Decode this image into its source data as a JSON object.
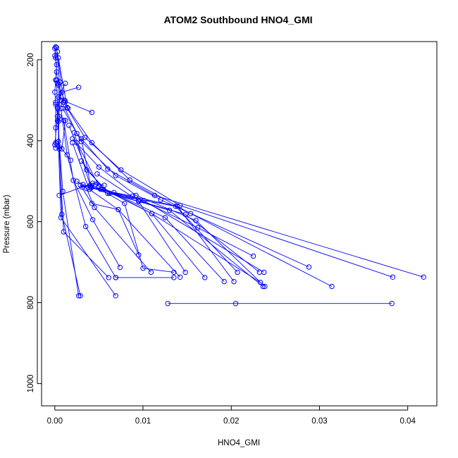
{
  "chart_data": {
    "type": "line",
    "title": "ATOM2 Southbound HNO4_GMI",
    "xlabel": "HNO4_GMI",
    "ylabel": "Pressure (mbar)",
    "xlim": [
      -0.0015,
      0.0433
    ],
    "ylim": [
      1055,
      155
    ],
    "y_reversed": true,
    "x_ticks": [
      0.0,
      0.01,
      0.02,
      0.03,
      0.04
    ],
    "x_tick_labels": [
      "0.00",
      "0.01",
      "0.02",
      "0.03",
      "0.04"
    ],
    "y_ticks": [
      200,
      400,
      600,
      800,
      1000
    ],
    "y_tick_labels": [
      "200",
      "400",
      "600",
      "800",
      "1000"
    ],
    "grid": false,
    "series_color": "#0000ff",
    "marker": "open-circle",
    "profiles": [
      [
        [
          0.0382,
          802
        ],
        [
          0.0205,
          802
        ],
        [
          0.0128,
          802
        ]
      ],
      [
        [
          0.0418,
          737
        ],
        [
          0.0113,
          535
        ],
        [
          0.006,
          470
        ],
        [
          0.0025,
          382
        ],
        [
          0.0007,
          300
        ],
        [
          0.0002,
          170
        ]
      ],
      [
        [
          0.0383,
          737
        ],
        [
          0.0142,
          560
        ],
        [
          0.0075,
          472
        ],
        [
          0.0034,
          392
        ],
        [
          0.001,
          305
        ],
        [
          0.0003,
          180
        ]
      ],
      [
        [
          0.0314,
          760
        ],
        [
          0.0154,
          580
        ],
        [
          0.0085,
          497
        ],
        [
          0.0042,
          405
        ],
        [
          0.0014,
          318
        ],
        [
          0.0004,
          195
        ]
      ],
      [
        [
          0.0288,
          712
        ],
        [
          0.012,
          546
        ],
        [
          0.0069,
          486
        ],
        [
          0.003,
          402
        ],
        [
          0.0009,
          320
        ]
      ],
      [
        [
          0.0238,
          760
        ],
        [
          0.016,
          597
        ],
        [
          0.0092,
          535
        ],
        [
          0.005,
          465
        ],
        [
          0.002,
          395
        ]
      ],
      [
        [
          0.0236,
          760
        ],
        [
          0.013,
          572
        ],
        [
          0.0062,
          530
        ],
        [
          0.0036,
          472
        ],
        [
          0.0016,
          362
        ]
      ],
      [
        [
          0.0233,
          750
        ],
        [
          0.011,
          580
        ],
        [
          0.0055,
          520
        ],
        [
          0.003,
          450
        ]
      ],
      [
        [
          0.0232,
          725
        ],
        [
          0.0148,
          582
        ],
        [
          0.0095,
          548
        ],
        [
          0.0048,
          482
        ]
      ],
      [
        [
          0.0237,
          725
        ],
        [
          0.0101,
          548
        ],
        [
          0.0041,
          514
        ],
        [
          0.003,
          395
        ]
      ],
      [
        [
          0.0225,
          685
        ],
        [
          0.0162,
          615
        ],
        [
          0.0088,
          537
        ],
        [
          0.0038,
          515
        ]
      ],
      [
        [
          0.0207,
          725
        ],
        [
          0.0137,
          562
        ],
        [
          0.006,
          530
        ],
        [
          0.0032,
          508
        ]
      ],
      [
        [
          0.0203,
          748
        ],
        [
          0.0139,
          562
        ],
        [
          0.0067,
          528
        ],
        [
          0.0041,
          517
        ]
      ],
      [
        [
          0.0192,
          748
        ],
        [
          0.0125,
          590
        ],
        [
          0.0046,
          508
        ],
        [
          0.0031,
          515
        ]
      ],
      [
        [
          0.017,
          738
        ],
        [
          0.011,
          580
        ],
        [
          0.005,
          512
        ],
        [
          0.0025,
          405
        ]
      ],
      [
        [
          0.0148,
          725
        ],
        [
          0.0095,
          550
        ],
        [
          0.004,
          510
        ],
        [
          0.0022,
          380
        ]
      ],
      [
        [
          0.0142,
          737
        ],
        [
          0.0072,
          570
        ],
        [
          0.0042,
          555
        ],
        [
          0.0029,
          510
        ]
      ],
      [
        [
          0.0135,
          725
        ],
        [
          0.01,
          715
        ],
        [
          0.0079,
          555
        ],
        [
          0.0052,
          520
        ]
      ],
      [
        [
          0.0109,
          725
        ],
        [
          0.0045,
          565
        ],
        [
          0.0036,
          518
        ],
        [
          0.0025,
          500
        ]
      ],
      [
        [
          0.0095,
          682
        ],
        [
          0.0072,
          570
        ],
        [
          0.0039,
          520
        ],
        [
          0.002,
          405
        ]
      ],
      [
        [
          0.0074,
          713
        ],
        [
          0.0043,
          595
        ],
        [
          0.0021,
          498
        ],
        [
          0.001,
          350
        ]
      ],
      [
        [
          0.0069,
          738
        ],
        [
          0.0035,
          612
        ],
        [
          0.0014,
          435
        ],
        [
          0.0007,
          320
        ]
      ],
      [
        [
          0.0069,
          783
        ],
        [
          0.0007,
          590
        ],
        [
          0.0004,
          402
        ],
        [
          0.0006,
          255
        ]
      ],
      [
        [
          0.0061,
          738
        ],
        [
          0.001,
          625
        ],
        [
          0.0005,
          420
        ],
        [
          0.0002,
          250
        ]
      ],
      [
        [
          0.0029,
          783
        ],
        [
          0.0008,
          582
        ],
        [
          0.0004,
          352
        ],
        [
          0.0001,
          305
        ]
      ],
      [
        [
          0.0027,
          783
        ],
        [
          0.0009,
          525
        ],
        [
          0.0003,
          340
        ],
        [
          0.0,
          410
        ]
      ],
      [
        [
          0.0069,
          738
        ],
        [
          0.0135,
          738
        ]
      ],
      [
        [
          0.0056,
          510
        ],
        [
          0.0043,
          505
        ],
        [
          0.0005,
          535
        ]
      ],
      [
        [
          0.0042,
          330
        ],
        [
          0.0012,
          303
        ],
        [
          0.0004,
          292
        ],
        [
          0.0012,
          258
        ]
      ],
      [
        [
          0.0027,
          268
        ],
        [
          0.0008,
          280
        ],
        [
          0.0003,
          320
        ],
        [
          0.0005,
          415
        ]
      ],
      [
        [
          0.0001,
          418
        ],
        [
          0.0001,
          405
        ],
        [
          0.0001,
          368
        ],
        [
          0.0001,
          310
        ],
        [
          0.0,
          280
        ],
        [
          0.0001,
          250
        ],
        [
          0.0002,
          212
        ],
        [
          0.0,
          190
        ],
        [
          0.0001,
          168
        ]
      ],
      [
        [
          0.0003,
          350
        ],
        [
          0.0005,
          310
        ],
        [
          0.0004,
          262
        ],
        [
          0.0002,
          230
        ],
        [
          0.0001,
          195
        ],
        [
          0.0,
          172
        ]
      ],
      [
        [
          0.0018,
          448
        ],
        [
          0.0008,
          420
        ],
        [
          0.0012,
          350
        ],
        [
          0.0005,
          340
        ]
      ],
      [
        [
          0.0015,
          320
        ],
        [
          0.0011,
          300
        ],
        [
          0.0003,
          258
        ]
      ]
    ]
  }
}
